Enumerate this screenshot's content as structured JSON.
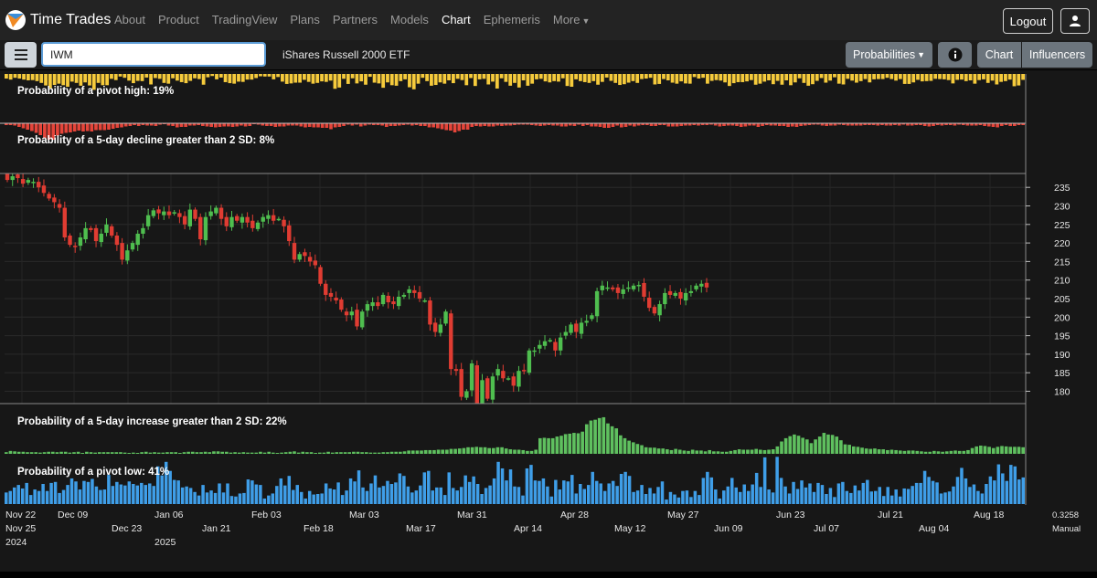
{
  "app": {
    "brand": "Time Trades"
  },
  "nav": {
    "items": [
      "About",
      "Product",
      "TradingView",
      "Plans",
      "Partners",
      "Models",
      "Chart",
      "Ephemeris"
    ],
    "more": "More",
    "logout": "Logout"
  },
  "toolbar": {
    "symbol_value": "IWM",
    "symbol_name": "iShares Russell 2000 ETF",
    "probabilities": "Probabilities",
    "chart_tab": "Chart",
    "influencers_tab": "Influencers"
  },
  "panels": {
    "pivot_high": "Probability of a pivot high: 19%",
    "decline": "Probability of a 5-day decline greater than 2 SD: 8%",
    "increase": "Probability of a 5-day increase greater than 2 SD: 22%",
    "pivot_low": "Probability of a pivot low: 41%"
  },
  "scale": {
    "value": "0.3258",
    "mode": "Manual"
  },
  "colors": {
    "yellow": "#f6cb3c",
    "red_bar": "#e6453a",
    "green_bar": "#5fc05f",
    "blue_bar": "#3f9ee8",
    "candle_up": "#4fbe4f",
    "candle_down": "#e03c32"
  },
  "chart_data": {
    "type": "candlestick",
    "title": "iShares Russell 2000 ETF",
    "ylim": [
      177,
      238
    ],
    "y_ticks": [
      235,
      230,
      225,
      220,
      215,
      210,
      205,
      200,
      195,
      190,
      185,
      180
    ],
    "x_ticks_row1": [
      "Nov 22",
      "Dec 09",
      "Jan 06",
      "Feb 03",
      "Mar 03",
      "Mar 31",
      "Apr 28",
      "May 27",
      "Jun 23",
      "Jul 21",
      "Aug 18"
    ],
    "x_ticks_row2": [
      "Nov 25",
      "Dec 23",
      "Jan 21",
      "Feb 18",
      "Mar 17",
      "Apr 14",
      "May 12",
      "Jun 09",
      "Jul 07",
      "Aug 04"
    ],
    "x_ticks_years": [
      "2024",
      "2025"
    ],
    "closes": [
      237,
      238,
      237.5,
      236,
      237,
      236.5,
      235,
      233.5,
      232,
      231,
      229.5,
      221.5,
      219.5,
      219,
      221.5,
      224,
      223.5,
      220.5,
      222.5,
      225,
      222,
      219.5,
      215.5,
      218,
      220,
      222.5,
      224,
      227.5,
      228.8,
      228,
      228.5,
      227.5,
      228.3,
      227,
      225,
      229,
      226.5,
      221,
      227,
      228.5,
      229.5,
      226.5,
      224.5,
      227,
      226,
      227,
      225.5,
      224,
      225.5,
      227,
      227.5,
      226,
      226.5,
      224.5,
      220.5,
      215.5,
      217,
      216.5,
      215,
      214,
      209,
      206,
      205.5,
      204.5,
      202,
      200.5,
      201.5,
      197.5,
      201.5,
      203.5,
      204,
      203,
      206,
      204,
      203.5,
      205.5,
      206,
      207.5,
      206.5,
      205,
      204.5,
      198,
      196,
      198,
      201.5,
      186,
      185.5,
      178.5,
      180,
      187.5,
      176.5,
      183,
      178,
      184,
      186,
      183.5,
      183.5,
      181.5,
      185.5,
      185.5,
      191,
      191,
      192.5,
      193.5,
      193.8,
      191,
      194.5,
      196,
      198,
      196,
      198.5,
      199,
      200.5,
      207,
      208.5,
      208,
      207.5,
      206.5,
      207.5,
      208,
      208.5,
      208.7,
      205.5,
      202.5,
      201,
      203.5,
      206.5,
      206,
      206.5,
      205,
      206.5,
      207,
      208.5,
      209,
      208
    ],
    "series_pivot_high": [
      0.18,
      0.22,
      0.15,
      0.18,
      0.22,
      0.25,
      0.24,
      0.28,
      0.35,
      0.45,
      0.56,
      0.43,
      0.38,
      0.44,
      0.5,
      0.3,
      0.35,
      0.46,
      0.33,
      0.45,
      0.62,
      0.35,
      0.44,
      0.44,
      0.19,
      0.24,
      0.1,
      0.15,
      0.26,
      0.36,
      0.27,
      0.28,
      0.14,
      0.41,
      0.16,
      0.19,
      0.35,
      0.38,
      0.17,
      0.26,
      0.32,
      0.36,
      0.27,
      0.17,
      0.2,
      0.42,
      0.13,
      0.08,
      0.21,
      0.14,
      0.32,
      0.36,
      0.38,
      0.3,
      0.31,
      0.22,
      0.22,
      0.16,
      0.09,
      0.1,
      0.1,
      0.21,
      0.12,
      0.3,
      0.39,
      0.37,
      0.34,
      0.34,
      0.23,
      0.31,
      0.38,
      0.35,
      0.29,
      0.31,
      0.26,
      0.58,
      0.53,
      0.19,
      0.39,
      0.17,
      0.37,
      0.29,
      0.42,
      0.11,
      0.34,
      0.37,
      0.54,
      0.33,
      0.44,
      0.46,
      0.28,
      0.21,
      0.52,
      0.6,
      0.38,
      0.15,
      0.28,
      0.46,
      0.43,
      0.33,
      0.38,
      0.25,
      0.36,
      0.19,
      0.24,
      0.44,
      0.16,
      0.47,
      0.21,
      0.19,
      0.41,
      0.3,
      0.57,
      0.17,
      0.31,
      0.46,
      0.35,
      0.53,
      0.25,
      0.46,
      0.38,
      0.21,
      0.19,
      0.29,
      0.33,
      0.28,
      0.3,
      0.17,
      0.47,
      0.5,
      0.21,
      0.28,
      0.32,
      0.35,
      0.28,
      0.42,
      0.31,
      0.14,
      0.27,
      0.35,
      0.43,
      0.4,
      0.34,
      0.28,
      0.35,
      0.2,
      0.18,
      0.15,
      0.41,
      0.39,
      0.2,
      0.25,
      0.34,
      0.38,
      0.29,
      0.37,
      0.38,
      0.12,
      0.18,
      0.15,
      0.38,
      0.27,
      0.24,
      0.26,
      0.33,
      0.47,
      0.36,
      0.32,
      0.32,
      0.29,
      0.24,
      0.42,
      0.38,
      0.3,
      0.25,
      0.4,
      0.27,
      0.42,
      0.25,
      0.44,
      0.33,
      0.17,
      0.35,
      0.46,
      0.4,
      0.27,
      0.16,
      0.34,
      0.26,
      0.13,
      0.38,
      0.41,
      0.19,
      0.26,
      0.34,
      0.28,
      0.2,
      0.33,
      0.21,
      0.2,
      0.2,
      0.15,
      0.2,
      0.26,
      0.2,
      0.39,
      0.39,
      0.33,
      0.23,
      0.29,
      0.28,
      0.27,
      0.19,
      0.2,
      0.21,
      0.24,
      0.37,
      0.23,
      0.22,
      0.28,
      0.25,
      0.38,
      0.24,
      0.21,
      0.35,
      0.26,
      0.41,
      0.31,
      0.28,
      0.22,
      0.48,
      0.45,
      0.23
    ],
    "series_decline": [
      0.04,
      0.04,
      0.05,
      0.08,
      0.11,
      0.14,
      0.17,
      0.21,
      0.26,
      0.32,
      0.36,
      0.36,
      0.27,
      0.23,
      0.21,
      0.2,
      0.18,
      0.16,
      0.18,
      0.17,
      0.18,
      0.15,
      0.15,
      0.15,
      0.14,
      0.12,
      0.1,
      0.09,
      0.07,
      0.06,
      0.04,
      0.06,
      0.04,
      0.05,
      0.05,
      0.06,
      0.03,
      0.02,
      0.05,
      0.06,
      0.09,
      0.08,
      0.08,
      0.05,
      0.05,
      0.04,
      0.06,
      0.07,
      0.08,
      0.09,
      0.08,
      0.07,
      0.07,
      0.08,
      0.07,
      0.05,
      0.07,
      0.06,
      0.02,
      0.03,
      0.05,
      0.06,
      0.06,
      0.08,
      0.07,
      0.07,
      0.05,
      0.05,
      0.05,
      0.07,
      0.09,
      0.08,
      0.09,
      0.09,
      0.1,
      0.1,
      0.13,
      0.09,
      0.08,
      0.06,
      0.03,
      0.05,
      0.03,
      0.07,
      0.05,
      0.03,
      0.04,
      0.04,
      0.05,
      0.08,
      0.06,
      0.06,
      0.05,
      0.04,
      0.03,
      0.05,
      0.04,
      0.06,
      0.06,
      0.09,
      0.09,
      0.11,
      0.13,
      0.15,
      0.16,
      0.2,
      0.17,
      0.14,
      0.14,
      0.08,
      0.06,
      0.07,
      0.06,
      0.07,
      0.07,
      0.05,
      0.06,
      0.05,
      0.05,
      0.04,
      0.03,
      0.03,
      0.03,
      0.04,
      0.05,
      0.06,
      0.05,
      0.04,
      0.05,
      0.05,
      0.07,
      0.07,
      0.05,
      0.06,
      0.03,
      0.06,
      0.04,
      0.07,
      0.07,
      0.08,
      0.1,
      0.1,
      0.08,
      0.05,
      0.09,
      0.08,
      0.05,
      0.07,
      0.05,
      0.04,
      0.04,
      0.06,
      0.06,
      0.04,
      0.04,
      0.07,
      0.07,
      0.07,
      0.06,
      0.05,
      0.05,
      0.04,
      0.05,
      0.04,
      0.04,
      0.03,
      0.05,
      0.07,
      0.06,
      0.05,
      0.05,
      0.06,
      0.08,
      0.07,
      0.05,
      0.05,
      0.08,
      0.06,
      0.04,
      0.05,
      0.05,
      0.06,
      0.06,
      0.08,
      0.07,
      0.08,
      0.06,
      0.05,
      0.04,
      0.03,
      0.03,
      0.05,
      0.06,
      0.05,
      0.05,
      0.03,
      0.04,
      0.05,
      0.05,
      0.05,
      0.05,
      0.04,
      0.04,
      0.04,
      0.05,
      0.04,
      0.05,
      0.05,
      0.04,
      0.05,
      0.03,
      0.05,
      0.05,
      0.04,
      0.04,
      0.06,
      0.07,
      0.06,
      0.04,
      0.05,
      0.04,
      0.04,
      0.05,
      0.03,
      0.04,
      0.05,
      0.05,
      0.05,
      0.04,
      0.06,
      0.07,
      0.08,
      0.09,
      0.06,
      0.04,
      0.06,
      0.06,
      0.04,
      0.04
    ],
    "series_increase": [
      0.04,
      0.07,
      0.06,
      0.05,
      0.05,
      0.04,
      0.04,
      0.04,
      0.03,
      0.04,
      0.05,
      0.05,
      0.04,
      0.05,
      0.05,
      0.03,
      0.04,
      0.05,
      0.02,
      0.05,
      0.04,
      0.03,
      0.04,
      0.04,
      0.04,
      0.04,
      0.04,
      0.04,
      0.03,
      0.02,
      0.03,
      0.02,
      0.04,
      0.05,
      0.03,
      0.04,
      0.03,
      0.03,
      0.04,
      0.04,
      0.04,
      0.02,
      0.04,
      0.05,
      0.05,
      0.04,
      0.04,
      0.05,
      0.04,
      0.06,
      0.06,
      0.05,
      0.05,
      0.03,
      0.04,
      0.03,
      0.04,
      0.03,
      0.03,
      0.03,
      0.05,
      0.03,
      0.05,
      0.03,
      0.02,
      0.03,
      0.04,
      0.05,
      0.06,
      0.03,
      0.05,
      0.04,
      0.04,
      0.02,
      0.03,
      0.03,
      0.05,
      0.03,
      0.04,
      0.04,
      0.04,
      0.04,
      0.05,
      0.05,
      0.04,
      0.04,
      0.03,
      0.03,
      0.03,
      0.04,
      0.04,
      0.05,
      0.05,
      0.05,
      0.06,
      0.08,
      0.08,
      0.08,
      0.08,
      0.09,
      0.09,
      0.09,
      0.1,
      0.1,
      0.1,
      0.12,
      0.12,
      0.13,
      0.14,
      0.16,
      0.16,
      0.17,
      0.16,
      0.16,
      0.14,
      0.14,
      0.16,
      0.16,
      0.13,
      0.11,
      0.1,
      0.1,
      0.09,
      0.07,
      0.07,
      0.1,
      0.38,
      0.39,
      0.38,
      0.38,
      0.42,
      0.44,
      0.48,
      0.49,
      0.51,
      0.5,
      0.54,
      0.72,
      0.81,
      0.83,
      0.87,
      0.89,
      0.74,
      0.67,
      0.62,
      0.45,
      0.38,
      0.32,
      0.28,
      0.24,
      0.21,
      0.16,
      0.15,
      0.15,
      0.13,
      0.13,
      0.11,
      0.09,
      0.12,
      0.1,
      0.08,
      0.07,
      0.1,
      0.08,
      0.08,
      0.06,
      0.09,
      0.06,
      0.06,
      0.05,
      0.05,
      0.07,
      0.09,
      0.11,
      0.1,
      0.1,
      0.1,
      0.12,
      0.1,
      0.09,
      0.1,
      0.11,
      0.18,
      0.3,
      0.38,
      0.43,
      0.47,
      0.44,
      0.39,
      0.35,
      0.26,
      0.35,
      0.42,
      0.51,
      0.47,
      0.46,
      0.42,
      0.33,
      0.23,
      0.22,
      0.18,
      0.17,
      0.15,
      0.13,
      0.12,
      0.13,
      0.11,
      0.11,
      0.09,
      0.1,
      0.09,
      0.08,
      0.07,
      0.08,
      0.08,
      0.07,
      0.06,
      0.05,
      0.05,
      0.07,
      0.06,
      0.05,
      0.06,
      0.07,
      0.08,
      0.07,
      0.07,
      0.09,
      0.14,
      0.18,
      0.2,
      0.19,
      0.17,
      0.14,
      0.17,
      0.19,
      0.18,
      0.17,
      0.17,
      0.17,
      0.16
    ],
    "series_pivot_low": [
      0.23,
      0.26,
      0.33,
      0.38,
      0.31,
      0.42,
      0.18,
      0.29,
      0.26,
      0.4,
      0.26,
      0.42,
      0.44,
      0.22,
      0.28,
      0.38,
      0.51,
      0.45,
      0.29,
      0.46,
      0.44,
      0.5,
      0.35,
      0.28,
      0.29,
      0.58,
      0.36,
      0.44,
      0.39,
      0.37,
      0.45,
      0.4,
      0.37,
      0.42,
      0.38,
      0.41,
      0.36,
      0.75,
      0.57,
      0.84,
      0.66,
      0.48,
      0.47,
      0.33,
      0.35,
      0.32,
      0.24,
      0.17,
      0.38,
      0.23,
      0.27,
      0.22,
      0.41,
      0.23,
      0.41,
      0.16,
      0.15,
      0.21,
      0.22,
      0.49,
      0.47,
      0.39,
      0.38,
      0.11,
      0.17,
      0.21,
      0.36,
      0.51,
      0.37,
      0.56,
      0.28,
      0.38,
      0.24,
      0.11,
      0.26,
      0.19,
      0.2,
      0.21,
      0.41,
      0.31,
      0.29,
      0.43,
      0.18,
      0.27,
      0.51,
      0.45,
      0.67,
      0.33,
      0.26,
      0.41,
      0.57,
      0.33,
      0.36,
      0.46,
      0.4,
      0.43,
      0.61,
      0.56,
      0.35,
      0.23,
      0.27,
      0.37,
      0.63,
      0.66,
      0.27,
      0.33,
      0.33,
      0.18,
      0.63,
      0.32,
      0.27,
      0.34,
      0.57,
      0.44,
      0.55,
      0.4,
      0.2,
      0.32,
      0.37,
      0.51,
      0.84,
      0.71,
      0.47,
      0.69,
      0.35,
      0.34,
      0.17,
      0.71,
      0.78,
      0.47,
      0.46,
      0.51,
      0.35,
      0.15,
      0.48,
      0.29,
      0.47,
      0.45,
      0.58,
      0.21,
      0.4,
      0.3,
      0.38,
      0.64,
      0.46,
      0.41,
      0.26,
      0.41,
      0.46,
      0.36,
      0.6,
      0.64,
      0.56,
      0.24,
      0.27,
      0.38,
      0.2,
      0.32,
      0.21,
      0.34,
      0.45,
      0.09,
      0.24,
      0.19,
      0.13,
      0.26,
      0.27,
      0.14,
      0.26,
      0.18,
      0.52,
      0.64,
      0.53,
      0.29,
      0.11,
      0.27,
      0.35,
      0.52,
      0.33,
      0.24,
      0.39,
      0.26,
      0.39,
      0.62,
      0.34,
      0.93,
      0.29,
      0.23,
      0.94,
      0.52,
      0.35,
      0.21,
      0.44,
      0.3,
      0.47,
      0.33,
      0.41,
      0.24,
      0.42,
      0.38,
      0.2,
      0.32,
      0.14,
      0.41,
      0.44,
      0.26,
      0.22,
      0.37,
      0.27,
      0.42,
      0.48,
      0.25,
      0.26,
      0.34,
      0.16,
      0.34,
      0.17,
      0.29,
      0.15,
      0.31,
      0.3,
      0.36,
      0.42,
      0.42,
      0.66,
      0.54,
      0.46,
      0.43,
      0.21,
      0.23,
      0.25,
      0.35,
      0.54,
      0.72,
      0.51,
      0.34,
      0.39,
      0.26,
      0.21,
      0.4,
      0.55,
      0.47,
      0.79,
      0.61,
      0.46,
      0.78,
      0.75,
      0.49,
      0.53
    ]
  }
}
